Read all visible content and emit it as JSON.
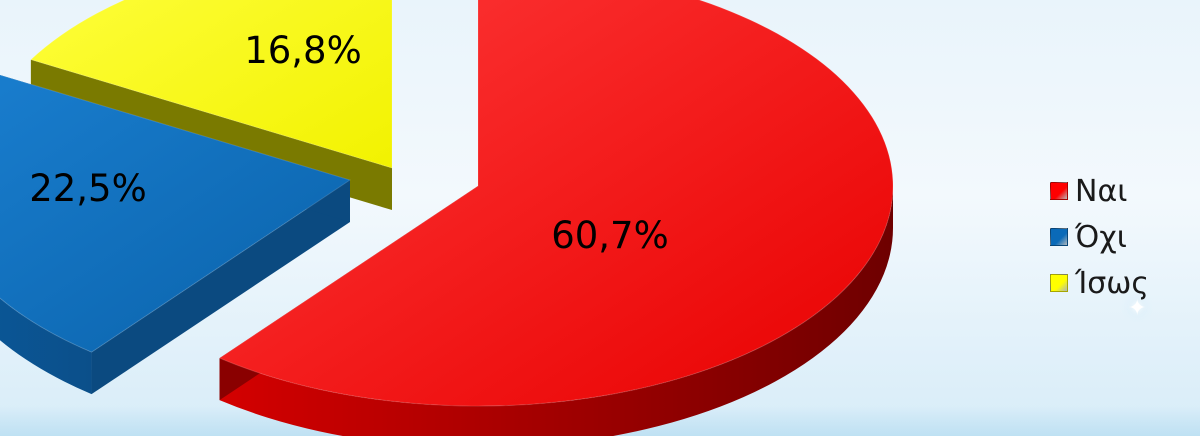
{
  "chart_data": {
    "type": "pie",
    "categories": [
      "Ναι",
      "Όχι",
      "Ίσως"
    ],
    "values": [
      60.7,
      22.5,
      16.8
    ],
    "labels": [
      "60,7%",
      "22,5%",
      "16,8%"
    ],
    "colors": [
      "#ff0000",
      "#0a6ab8",
      "#ffff00"
    ],
    "dark_colors": [
      "#8a0000",
      "#0b4a80",
      "#7a7a00"
    ],
    "legend_position": "right",
    "style": "3d-exploded"
  },
  "legend": {
    "items": [
      {
        "label": "Ναι",
        "color": "#ff0000"
      },
      {
        "label": "Όχι",
        "color": "#0a6ab8"
      },
      {
        "label": "Ίσως",
        "color": "#ffff00"
      }
    ]
  }
}
